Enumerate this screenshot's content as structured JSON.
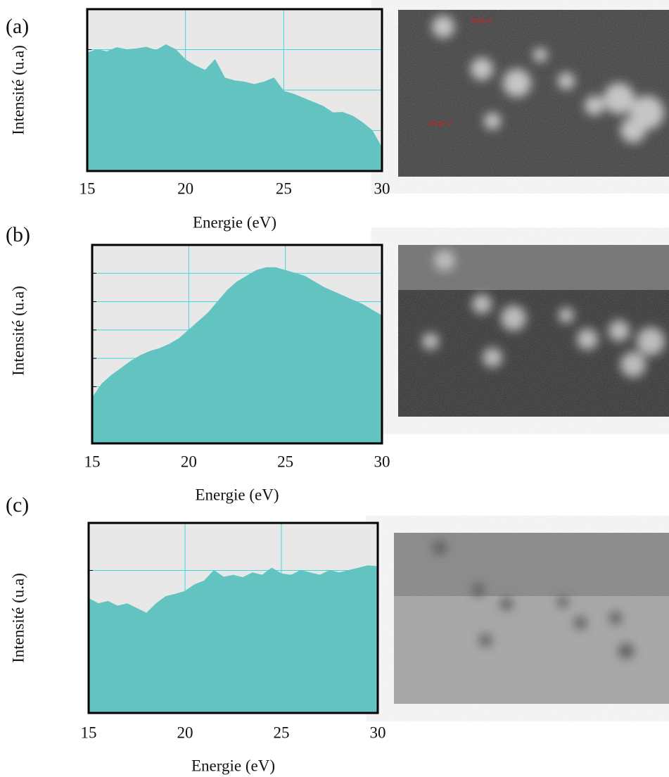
{
  "chart_data": [
    {
      "type": "area",
      "label": "(a)",
      "ylabel": "Intensité (u.a)",
      "xlabel": "Energie (eV)",
      "color": "#62c3c0",
      "background": "#e8e8e8",
      "grid_color": "#3fd6de",
      "xlim": [
        15,
        30
      ],
      "xticks": [
        15,
        20,
        25,
        30
      ],
      "ylim": [
        0,
        4
      ],
      "ygrid": [
        1,
        2,
        3
      ],
      "x": [
        15,
        15.5,
        16,
        16.5,
        17,
        17.5,
        18,
        18.5,
        19,
        19.5,
        20,
        20.5,
        21,
        21.5,
        22,
        22.5,
        23,
        23.5,
        24,
        24.5,
        25,
        25.5,
        26,
        26.5,
        27,
        27.5,
        28,
        28.5,
        29,
        29.5,
        30
      ],
      "values": [
        2.92,
        3.0,
        2.95,
        3.05,
        3.0,
        3.02,
        3.06,
        2.98,
        3.12,
        3.0,
        2.75,
        2.6,
        2.49,
        2.75,
        2.3,
        2.23,
        2.2,
        2.14,
        2.2,
        2.3,
        1.97,
        1.9,
        1.8,
        1.7,
        1.6,
        1.44,
        1.45,
        1.36,
        1.2,
        1.0,
        0.57
      ],
      "image_labels": [
        "Bulle1",
        "Bulle 2"
      ]
    },
    {
      "type": "area",
      "label": "(b)",
      "ylabel": "Intensité (u.a)",
      "xlabel": "Energie (eV)",
      "color": "#62c3c0",
      "background": "#e8e8e8",
      "grid_color": "#3fd6de",
      "xlim": [
        15,
        30
      ],
      "xticks": [
        15,
        20,
        25,
        30
      ],
      "ylim": [
        0,
        7
      ],
      "ygrid": [
        1,
        2,
        3,
        4,
        5,
        6
      ],
      "x": [
        15,
        15.5,
        16,
        16.5,
        17,
        17.5,
        18,
        18.5,
        19,
        19.5,
        20,
        20.5,
        21,
        21.5,
        22,
        22.5,
        23,
        23.5,
        24,
        24.5,
        25,
        25.5,
        26,
        26.5,
        27,
        27.5,
        28,
        28.5,
        29,
        29.5,
        30
      ],
      "values": [
        1.6,
        2.1,
        2.4,
        2.65,
        2.9,
        3.1,
        3.25,
        3.35,
        3.5,
        3.7,
        4.0,
        4.3,
        4.6,
        5.0,
        5.4,
        5.7,
        5.9,
        6.1,
        6.2,
        6.2,
        6.1,
        6.0,
        5.9,
        5.7,
        5.5,
        5.35,
        5.2,
        5.05,
        4.9,
        4.7,
        4.5
      ]
    },
    {
      "type": "area",
      "label": "(c)",
      "ylabel": "Intensité (u.a)",
      "xlabel": "Energie (eV)",
      "color": "#62c3c0",
      "background": "#e8e8e8",
      "grid_color": "#3fd6de",
      "xlim": [
        15,
        30
      ],
      "xticks": [
        15,
        20,
        25,
        30
      ],
      "ylim": [
        0,
        4
      ],
      "ygrid": [
        1,
        2,
        3
      ],
      "x": [
        15,
        15.5,
        16,
        16.5,
        17,
        17.5,
        18,
        18.5,
        19,
        19.5,
        20,
        20.5,
        21,
        21.5,
        22,
        22.5,
        23,
        23.5,
        24,
        24.5,
        25,
        25.5,
        26,
        26.5,
        27,
        27.5,
        28,
        28.5,
        29,
        29.5,
        30
      ],
      "values": [
        2.41,
        2.3,
        2.35,
        2.25,
        2.3,
        2.2,
        2.1,
        2.3,
        2.45,
        2.5,
        2.56,
        2.7,
        2.78,
        3.0,
        2.86,
        2.9,
        2.85,
        2.95,
        2.9,
        3.05,
        2.93,
        2.9,
        3.0,
        2.95,
        2.9,
        3.0,
        2.95,
        3.0,
        3.05,
        3.1,
        3.08
      ]
    }
  ]
}
